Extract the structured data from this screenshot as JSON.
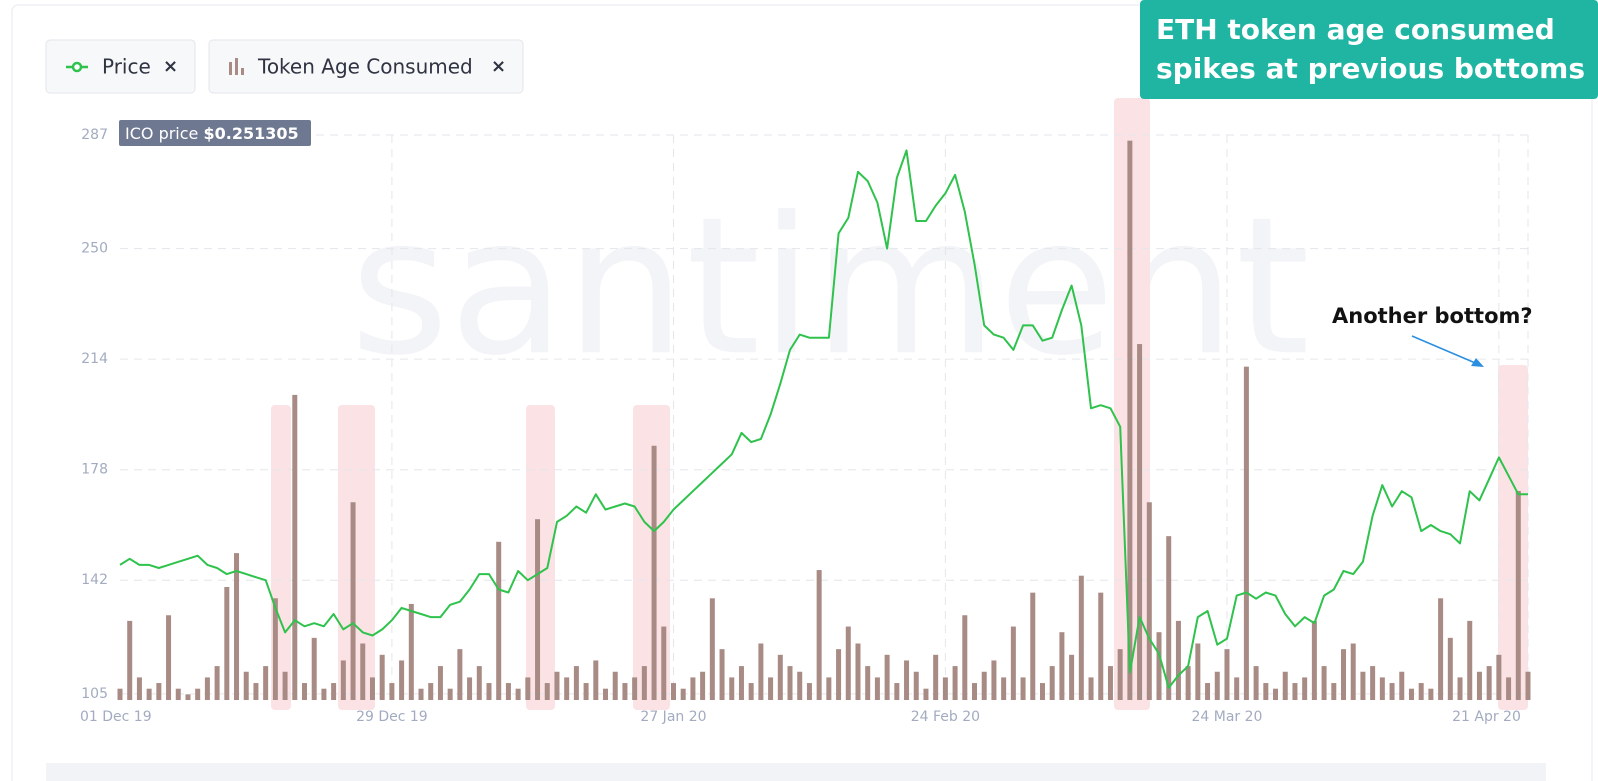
{
  "chart_data": {
    "type": "combo",
    "title": [
      "ETH token age consumed",
      "spikes at previous bottoms"
    ],
    "annotation": "Another bottom?",
    "ico_label": "ICO price",
    "ico_value": "$0.251305",
    "watermark": "santiment",
    "legend_close": "×",
    "categories": [
      "01 Dec 19",
      null,
      null,
      null,
      null,
      null,
      null,
      null,
      null,
      null,
      null,
      null,
      null,
      null,
      null,
      null,
      null,
      null,
      null,
      null,
      null,
      null,
      null,
      null,
      null,
      null,
      null,
      null,
      "29 Dec 19",
      null,
      null,
      null,
      null,
      null,
      null,
      null,
      null,
      null,
      null,
      null,
      null,
      null,
      null,
      null,
      null,
      null,
      null,
      null,
      null,
      null,
      null,
      null,
      null,
      null,
      null,
      null,
      null,
      "27 Jan 20",
      null,
      null,
      null,
      null,
      null,
      null,
      null,
      null,
      null,
      null,
      null,
      null,
      null,
      null,
      null,
      null,
      null,
      null,
      null,
      null,
      null,
      null,
      null,
      null,
      null,
      null,
      null,
      "24 Feb 20",
      null,
      null,
      null,
      null,
      null,
      null,
      null,
      null,
      null,
      null,
      null,
      null,
      null,
      null,
      null,
      null,
      null,
      null,
      null,
      null,
      null,
      null,
      null,
      null,
      null,
      null,
      null,
      null,
      "24 Mar 20",
      null,
      null,
      null,
      null,
      null,
      null,
      null,
      null,
      null,
      null,
      null,
      null,
      null,
      null,
      null,
      null,
      null,
      null,
      null,
      null,
      null,
      null,
      null,
      null,
      null,
      null,
      null,
      "21 Apr 20",
      null,
      null,
      null
    ],
    "series": [
      {
        "name": "Price",
        "type": "line",
        "color": "#2fc24c",
        "values": [
          147,
          149,
          147,
          147,
          146,
          147,
          148,
          149,
          150,
          147,
          146,
          144,
          145,
          144,
          143,
          142,
          133,
          125,
          129,
          127,
          128,
          127,
          131,
          126,
          128,
          125,
          124,
          126,
          129,
          133,
          132,
          131,
          130,
          130,
          134,
          135,
          139,
          144,
          144,
          139,
          138,
          145,
          142,
          144,
          146,
          161,
          163,
          166,
          164,
          170,
          165,
          166,
          167,
          166,
          161,
          158,
          161,
          165,
          168,
          171,
          174,
          177,
          180,
          183,
          190,
          187,
          188,
          196,
          206,
          217,
          222,
          221,
          221,
          221,
          255,
          260,
          275,
          272,
          265,
          250,
          273,
          282,
          259,
          259,
          264,
          268,
          274,
          262,
          245,
          225,
          222,
          221,
          217,
          225,
          225,
          220,
          221,
          230,
          238,
          225,
          198,
          199,
          198,
          192,
          112,
          130,
          123,
          118,
          107,
          111,
          114,
          130,
          132,
          121,
          123,
          137,
          138,
          136,
          138,
          137,
          131,
          127,
          130,
          128,
          137,
          139,
          145,
          144,
          148,
          163,
          173,
          166,
          171,
          169,
          158,
          160,
          158,
          157,
          154,
          171,
          168,
          175,
          182,
          176,
          170,
          170
        ]
      },
      {
        "name": "Token Age Consumed",
        "type": "bar",
        "axis": "y2",
        "color": "#a88b84",
        "values": [
          2,
          14,
          4,
          2,
          3,
          15,
          2,
          1,
          2,
          4,
          6,
          20,
          26,
          5,
          3,
          6,
          18,
          5,
          54,
          3,
          11,
          2,
          3,
          7,
          35,
          10,
          4,
          8,
          3,
          7,
          17,
          2,
          3,
          6,
          2,
          9,
          4,
          6,
          3,
          28,
          3,
          2,
          4,
          32,
          3,
          5,
          4,
          6,
          3,
          7,
          2,
          5,
          3,
          4,
          6,
          45,
          13,
          3,
          2,
          4,
          5,
          18,
          9,
          4,
          6,
          3,
          10,
          4,
          8,
          6,
          5,
          3,
          23,
          4,
          9,
          13,
          10,
          6,
          4,
          8,
          3,
          7,
          5,
          2,
          8,
          4,
          6,
          15,
          3,
          5,
          7,
          4,
          13,
          4,
          19,
          3,
          6,
          12,
          8,
          22,
          4,
          19,
          6,
          9,
          99,
          63,
          35,
          12,
          29,
          14,
          6,
          10,
          3,
          5,
          9,
          4,
          59,
          6,
          3,
          2,
          5,
          3,
          4,
          14,
          6,
          3,
          9,
          10,
          5,
          6,
          4,
          3,
          5,
          2,
          3,
          2,
          18,
          11,
          4,
          14,
          5,
          6,
          8,
          4,
          37,
          5
        ]
      }
    ],
    "ylim": [
      103,
      287
    ],
    "yticks": [
      105,
      142,
      178,
      214,
      250,
      287
    ],
    "y2lim": [
      0,
      100
    ],
    "grid": true
  }
}
